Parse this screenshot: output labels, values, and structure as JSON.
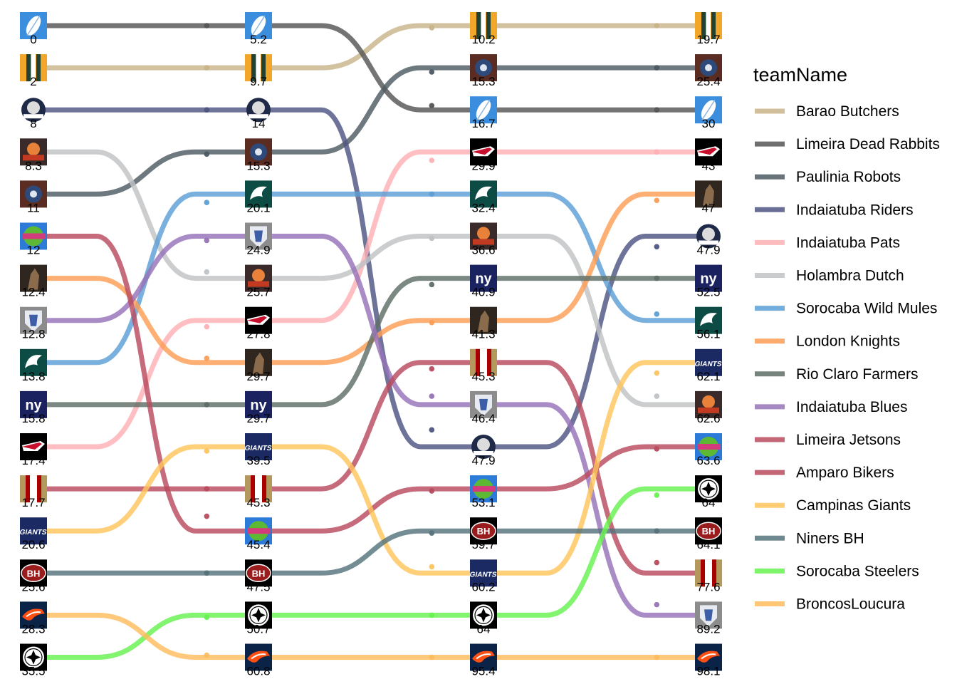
{
  "chart_data": {
    "type": "bump",
    "legend": {
      "title": "teamName",
      "placement": "right"
    },
    "rounds": [
      "1",
      "2",
      "3",
      "4"
    ],
    "series": [
      {
        "name": "Barao Butchers",
        "color": "#c9b48a",
        "logo": "packers-logo",
        "ranks": [
          2,
          2,
          1,
          1
        ],
        "values": [
          "2",
          "9.7",
          "10.2",
          "19.7"
        ]
      },
      {
        "name": "Limeira Dead Rabbits",
        "color": "#555555",
        "logo": "feather-logo",
        "ranks": [
          1,
          1,
          3,
          3
        ],
        "values": [
          "0",
          "5.2",
          "16.7",
          "30"
        ]
      },
      {
        "name": "Paulinia Robots",
        "color": "#4d5a63",
        "logo": "robot-logo",
        "ranks": [
          5,
          4,
          2,
          2
        ],
        "values": [
          "11",
          "15.3",
          "15.3",
          "25.4"
        ]
      },
      {
        "name": "Indaiatuba Riders",
        "color": "#4e5583",
        "logo": "riders-logo",
        "ranks": [
          3,
          3,
          11,
          6
        ],
        "values": [
          "8",
          "14",
          "47.9",
          "47.9"
        ]
      },
      {
        "name": "Indaiatuba Pats",
        "color": "#ffb0b4",
        "logo": "patriots-logo",
        "ranks": [
          11,
          8,
          4,
          4
        ],
        "values": [
          "17.4",
          "27.8",
          "29.9",
          "43"
        ]
      },
      {
        "name": "Holambra Dutch",
        "color": "#bfc2c4",
        "logo": "dutch-logo",
        "ranks": [
          4,
          7,
          6,
          10
        ],
        "values": [
          "8.3",
          "25.7",
          "36.6",
          "62.6"
        ]
      },
      {
        "name": "Sorocaba Wild Mules",
        "color": "#5b9fd6",
        "logo": "eagles-logo",
        "ranks": [
          9,
          5,
          5,
          8
        ],
        "values": [
          "13.8",
          "20.1",
          "32.4",
          "56.1"
        ]
      },
      {
        "name": "London Knights",
        "color": "#fc9d56",
        "logo": "knight-logo",
        "ranks": [
          7,
          9,
          8,
          5
        ],
        "values": [
          "12.4",
          "29.7",
          "41.3",
          "47"
        ]
      },
      {
        "name": "Rio Claro Farmers",
        "color": "#5f6f66",
        "logo": "ny-logo",
        "ranks": [
          10,
          10,
          7,
          7
        ],
        "values": [
          "15.8",
          "29.7",
          "40.9",
          "52.5"
        ]
      },
      {
        "name": "Indaiatuba Blues",
        "color": "#9673b8",
        "logo": "blues-logo",
        "ranks": [
          8,
          6,
          10,
          15
        ],
        "values": [
          "12.8",
          "24.9",
          "46.4",
          "89.2"
        ]
      },
      {
        "name": "Limeira Jetsons",
        "color": "#b84b5e",
        "logo": "jetsons-logo",
        "ranks": [
          6,
          13,
          12,
          11
        ],
        "values": [
          "12",
          "45.4",
          "53.1",
          "63.6"
        ]
      },
      {
        "name": "Amparo Bikers",
        "color": "#b84b5e",
        "logo": "niners-logo",
        "ranks": [
          12,
          12,
          9,
          14
        ],
        "values": [
          "17.7",
          "45.3",
          "45.3",
          "77.6"
        ]
      },
      {
        "name": "Campinas Giants",
        "color": "#ffc45c",
        "logo": "giants-logo",
        "ranks": [
          13,
          11,
          14,
          9
        ],
        "values": [
          "20.6",
          "39.5",
          "60.2",
          "62.1"
        ]
      },
      {
        "name": "Niners BH",
        "color": "#55737b",
        "logo": "bh-logo",
        "ranks": [
          14,
          14,
          13,
          13
        ],
        "values": [
          "25.6",
          "47.5",
          "59.7",
          "64.1"
        ]
      },
      {
        "name": "Sorocaba Steelers",
        "color": "#66f24f",
        "logo": "steelers-logo",
        "ranks": [
          16,
          15,
          15,
          12
        ],
        "values": [
          "35.5",
          "50.7",
          "64",
          "64"
        ]
      },
      {
        "name": "BroncosLoucura",
        "color": "#ffbc5e",
        "logo": "broncos-logo",
        "ranks": [
          15,
          16,
          16,
          16
        ],
        "values": [
          "28.3",
          "60.8",
          "95.4",
          "98.1"
        ]
      }
    ]
  }
}
